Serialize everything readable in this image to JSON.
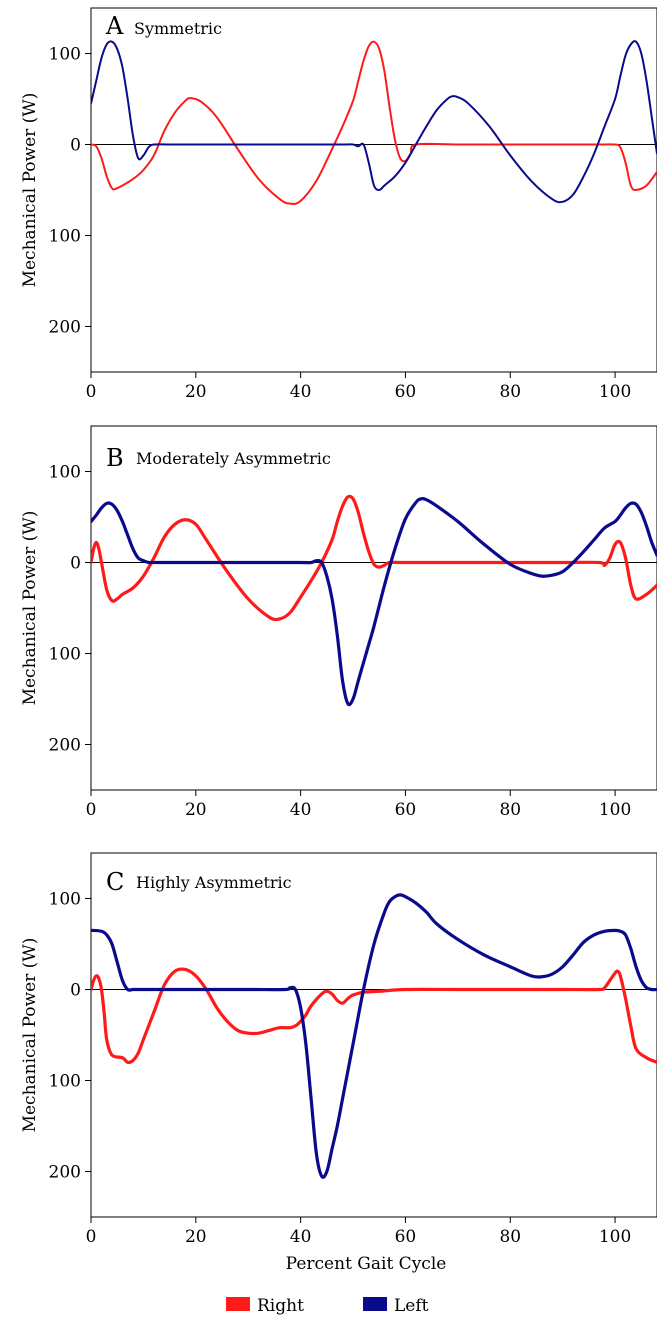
{
  "colors": {
    "right": "#ff1a1a",
    "left": "#0a0a8c"
  },
  "xlabel": "Percent Gait Cycle",
  "legend": [
    {
      "name": "Right",
      "color": "#ff1a1a"
    },
    {
      "name": "Left",
      "color": "#0a0a8c"
    }
  ],
  "chart_data": [
    {
      "type": "line",
      "letter": "A",
      "title": "Symmetric",
      "ylabel": "Mechanical Power (W)",
      "xlim": [
        0,
        108
      ],
      "ylim": [
        -250,
        150
      ],
      "xticks": [
        0,
        20,
        40,
        60,
        80,
        100
      ],
      "yticks": [
        {
          "value": 100,
          "label": "100"
        },
        {
          "value": 0,
          "label": "0"
        },
        {
          "value": -100,
          "label": "100"
        },
        {
          "value": -200,
          "label": "200"
        }
      ],
      "series": [
        {
          "name": "Right",
          "x": [
            0,
            1,
            2,
            3,
            4,
            5,
            8,
            10,
            12,
            14,
            16,
            18,
            19,
            21,
            24,
            28,
            32,
            36,
            38,
            40,
            43,
            46,
            48,
            50,
            51,
            52,
            53,
            54,
            55,
            56,
            57,
            58,
            59,
            60,
            61,
            62,
            70,
            80,
            90,
            95,
            97,
            98,
            100,
            101,
            102,
            103,
            104,
            106,
            108
          ],
          "y": [
            0,
            -2,
            -15,
            -35,
            -48,
            -48,
            -38,
            -28,
            -12,
            15,
            35,
            48,
            51,
            47,
            30,
            -5,
            -38,
            -60,
            -65,
            -62,
            -40,
            -5,
            20,
            48,
            70,
            92,
            108,
            113,
            105,
            80,
            40,
            5,
            -15,
            -18,
            -10,
            0,
            0,
            0,
            0,
            0,
            0,
            0,
            0,
            -3,
            -20,
            -45,
            -50,
            -45,
            -30
          ]
        },
        {
          "name": "Left",
          "x": [
            0,
            1,
            2,
            3,
            4,
            5,
            6,
            7,
            8,
            9,
            10,
            11,
            12,
            15,
            20,
            30,
            40,
            48,
            50,
            51,
            52,
            53,
            54,
            55,
            56,
            58,
            60,
            62,
            64,
            66,
            68,
            69,
            70,
            72,
            76,
            80,
            84,
            88,
            90,
            92,
            94,
            96,
            98,
            100,
            101,
            102,
            103,
            104,
            105,
            106,
            107,
            108
          ],
          "y": [
            45,
            70,
            95,
            110,
            113,
            105,
            85,
            50,
            10,
            -15,
            -12,
            -3,
            0,
            0,
            0,
            0,
            0,
            0,
            0,
            -2,
            0,
            -20,
            -45,
            -50,
            -45,
            -35,
            -20,
            0,
            20,
            38,
            50,
            53,
            52,
            45,
            20,
            -12,
            -40,
            -60,
            -63,
            -55,
            -35,
            -10,
            20,
            50,
            75,
            98,
            110,
            113,
            100,
            70,
            30,
            -10
          ]
        }
      ]
    },
    {
      "type": "line",
      "letter": "B",
      "title": "Moderately Asymmetric",
      "ylabel": "Mechanical Power (W)",
      "xlim": [
        0,
        108
      ],
      "ylim": [
        -250,
        150
      ],
      "xticks": [
        0,
        20,
        40,
        60,
        80,
        100
      ],
      "yticks": [
        {
          "value": 100,
          "label": "100"
        },
        {
          "value": 0,
          "label": "0"
        },
        {
          "value": -100,
          "label": "100"
        },
        {
          "value": -200,
          "label": "200"
        }
      ],
      "series": [
        {
          "name": "Right",
          "x": [
            0,
            0.5,
            1,
            1.5,
            2,
            3,
            4,
            5,
            6,
            8,
            10,
            12,
            14,
            16,
            18,
            20,
            22,
            26,
            30,
            34,
            36,
            38,
            40,
            42,
            44,
            46,
            47,
            48,
            49,
            50,
            51,
            52,
            53,
            54,
            55,
            56,
            57,
            60,
            70,
            80,
            90,
            97,
            98,
            99,
            100,
            101,
            102,
            103,
            104,
            106,
            108
          ],
          "y": [
            0,
            15,
            22,
            15,
            0,
            -30,
            -42,
            -40,
            -35,
            -28,
            -15,
            5,
            28,
            42,
            47,
            42,
            25,
            -10,
            -40,
            -60,
            -62,
            -55,
            -38,
            -20,
            0,
            25,
            45,
            62,
            72,
            70,
            55,
            32,
            12,
            -2,
            -5,
            -3,
            0,
            0,
            0,
            0,
            0,
            0,
            -3,
            5,
            20,
            22,
            5,
            -25,
            -40,
            -35,
            -25
          ]
        },
        {
          "name": "Left",
          "x": [
            0,
            1,
            2,
            3,
            4,
            5,
            6,
            7,
            8,
            9,
            10,
            11,
            12,
            20,
            30,
            40,
            42,
            43,
            44,
            45,
            46,
            47,
            48,
            49,
            50,
            51,
            52,
            53,
            54,
            56,
            58,
            60,
            62,
            63,
            64,
            66,
            70,
            75,
            80,
            84,
            86,
            88,
            90,
            92,
            94,
            96,
            98,
            100,
            101,
            102,
            103,
            104,
            105,
            106,
            107,
            108
          ],
          "y": [
            45,
            52,
            60,
            65,
            64,
            57,
            45,
            30,
            15,
            5,
            2,
            0,
            0,
            0,
            0,
            0,
            0,
            2,
            0,
            -15,
            -40,
            -80,
            -130,
            -155,
            -150,
            -130,
            -110,
            -90,
            -70,
            -25,
            15,
            48,
            66,
            70,
            69,
            62,
            45,
            20,
            -2,
            -12,
            -15,
            -14,
            -10,
            0,
            12,
            25,
            38,
            45,
            52,
            60,
            65,
            64,
            55,
            40,
            22,
            8
          ]
        }
      ]
    },
    {
      "type": "line",
      "letter": "C",
      "title": "Highly Asymmetric",
      "ylabel": "Mechanical Power (W)",
      "xlim": [
        0,
        108
      ],
      "ylim": [
        -250,
        150
      ],
      "xticks": [
        0,
        20,
        40,
        60,
        80,
        100
      ],
      "yticks": [
        {
          "value": 100,
          "label": "100"
        },
        {
          "value": 0,
          "label": "0"
        },
        {
          "value": -100,
          "label": "100"
        },
        {
          "value": -200,
          "label": "200"
        }
      ],
      "series": [
        {
          "name": "Right",
          "x": [
            0,
            0.5,
            1,
            1.5,
            2,
            2.5,
            3,
            4,
            6,
            7,
            8,
            9,
            10,
            12,
            14,
            16,
            18,
            20,
            22,
            24,
            26,
            28,
            30,
            32,
            34,
            36,
            38,
            39,
            40,
            41,
            42,
            44,
            45,
            46,
            47,
            48,
            49,
            50,
            52,
            55,
            60,
            70,
            80,
            90,
            97,
            98,
            99,
            100,
            100.5,
            101,
            102,
            103,
            104,
            106,
            108
          ],
          "y": [
            0,
            10,
            15,
            12,
            0,
            -25,
            -55,
            -72,
            -75,
            -80,
            -78,
            -70,
            -55,
            -25,
            5,
            20,
            22,
            15,
            0,
            -20,
            -35,
            -45,
            -48,
            -48,
            -45,
            -42,
            -42,
            -40,
            -35,
            -28,
            -18,
            -5,
            -2,
            -5,
            -12,
            -15,
            -10,
            -6,
            -3,
            -2,
            0,
            0,
            0,
            0,
            0,
            2,
            10,
            18,
            20,
            15,
            -10,
            -40,
            -65,
            -75,
            -80
          ]
        },
        {
          "name": "Left",
          "x": [
            0,
            2,
            3,
            4,
            5,
            6,
            7,
            8,
            9,
            10,
            15,
            20,
            30,
            37,
            38,
            39,
            40,
            41,
            42,
            43,
            44,
            45,
            46,
            47,
            48,
            50,
            52,
            54,
            56,
            57,
            58,
            59,
            60,
            62,
            64,
            66,
            70,
            75,
            80,
            84,
            86,
            88,
            90,
            92,
            94,
            96,
            98,
            100,
            101,
            102,
            103,
            104,
            105,
            106,
            107,
            108
          ],
          "y": [
            65,
            64,
            60,
            50,
            30,
            10,
            0,
            0,
            0,
            0,
            0,
            0,
            0,
            0,
            2,
            0,
            -20,
            -60,
            -120,
            -180,
            -205,
            -200,
            -175,
            -150,
            -120,
            -60,
            0,
            50,
            85,
            97,
            102,
            104,
            102,
            95,
            85,
            72,
            55,
            38,
            25,
            15,
            14,
            17,
            25,
            38,
            52,
            60,
            64,
            65,
            64,
            60,
            45,
            25,
            10,
            2,
            0,
            0
          ]
        }
      ]
    }
  ]
}
